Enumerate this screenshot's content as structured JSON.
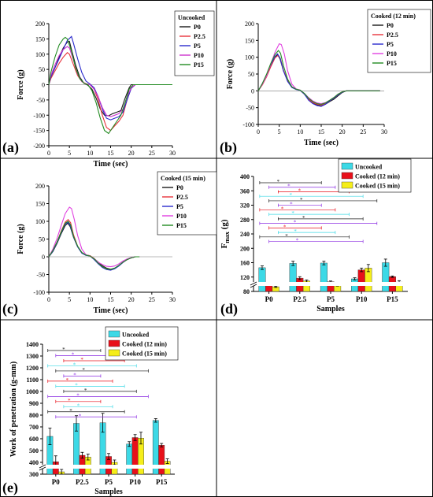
{
  "chart_data": [
    {
      "panel": "(a)",
      "type": "line",
      "xlabel": "Time (sec)",
      "ylabel": "Force (g)",
      "xlim": [
        0,
        30
      ],
      "ylim": [
        -200,
        200
      ],
      "xticks": [
        0,
        5,
        10,
        15,
        20,
        25,
        30
      ],
      "yticks": [
        -200,
        -150,
        -100,
        -50,
        0,
        50,
        100,
        150,
        200
      ],
      "legend": {
        "title": "Uncooked",
        "position": "top-right"
      },
      "series": [
        {
          "name": "P0",
          "color": "#1a1a1a",
          "x": [
            0,
            0.5,
            1.5,
            2.5,
            3.5,
            4.5,
            5.0,
            5.5,
            6.5,
            7.5,
            8.5,
            9.5,
            10.5,
            11.5,
            12.5,
            13.5,
            14.5,
            15.5,
            16.5,
            17.5,
            18.5,
            19.5,
            20.0,
            21,
            25,
            30
          ],
          "y": [
            0,
            25,
            55,
            90,
            120,
            140,
            142,
            115,
            65,
            25,
            5,
            -2,
            -15,
            -45,
            -80,
            -100,
            -102,
            -95,
            -90,
            -85,
            -45,
            -10,
            0,
            0,
            0,
            0
          ]
        },
        {
          "name": "P2.5",
          "color": "#e8323c",
          "x": [
            0,
            0.5,
            1.5,
            2.5,
            3.5,
            4.5,
            5.0,
            6.0,
            7.0,
            8.0,
            9.0,
            10.0,
            11.0,
            12.0,
            13.0,
            14.0,
            15.0,
            16.0,
            17.0,
            18.0,
            19.0,
            20.0,
            21,
            25,
            30
          ],
          "y": [
            0,
            20,
            45,
            70,
            90,
            105,
            100,
            65,
            30,
            10,
            3,
            0,
            -15,
            -50,
            -100,
            -140,
            -150,
            -135,
            -120,
            -100,
            -50,
            -10,
            0,
            0,
            0
          ]
        },
        {
          "name": "P5",
          "color": "#2a2acc",
          "x": [
            0,
            0.5,
            1.5,
            2.5,
            3.5,
            4.5,
            5.5,
            6.0,
            7.0,
            8.0,
            9.0,
            10.0,
            11.0,
            12.0,
            13.0,
            14.0,
            15.0,
            16.0,
            17.0,
            18.0,
            19.0,
            20.0,
            21,
            25,
            30
          ],
          "y": [
            0,
            25,
            55,
            85,
            115,
            145,
            158,
            135,
            85,
            40,
            12,
            2,
            -10,
            -40,
            -80,
            -110,
            -115,
            -110,
            -105,
            -90,
            -50,
            -12,
            0,
            0,
            0
          ]
        },
        {
          "name": "P10",
          "color": "#cc33cc",
          "x": [
            0,
            0.5,
            1.5,
            2.5,
            3.5,
            4.5,
            5.0,
            6.0,
            7.0,
            8.0,
            9.0,
            10.0,
            11.0,
            12.0,
            13.0,
            14.0,
            15.0,
            16.0,
            17.0,
            18.0,
            19.0,
            20.0,
            21,
            25,
            30
          ],
          "y": [
            0,
            30,
            65,
            95,
            115,
            125,
            120,
            80,
            35,
            10,
            2,
            0,
            -15,
            -40,
            -75,
            -100,
            -105,
            -100,
            -95,
            -80,
            -40,
            -10,
            0,
            0,
            0
          ]
        },
        {
          "name": "P15",
          "color": "#228b22",
          "x": [
            0,
            0.5,
            1.5,
            2.5,
            3.5,
            4.0,
            4.5,
            5.5,
            6.5,
            7.5,
            8.5,
            9.5,
            10.5,
            11.5,
            12.5,
            13.5,
            14.5,
            15.5,
            16.5,
            17.5,
            18.5,
            19.5,
            20.5,
            25,
            30
          ],
          "y": [
            0,
            40,
            90,
            130,
            150,
            155,
            150,
            110,
            55,
            20,
            5,
            0,
            -20,
            -60,
            -110,
            -150,
            -160,
            -140,
            -120,
            -100,
            -60,
            -15,
            0,
            0,
            0
          ]
        }
      ]
    },
    {
      "panel": "(b)",
      "type": "line",
      "xlabel": "Time (sec)",
      "ylabel": "Force (g)",
      "xlim": [
        0,
        30
      ],
      "ylim": [
        -100,
        200
      ],
      "xticks": [
        0,
        5,
        10,
        15,
        20,
        25,
        30
      ],
      "yticks": [
        -100,
        -50,
        0,
        50,
        100,
        150,
        200
      ],
      "legend": {
        "title": "Cooked (12 min)",
        "position": "top-right"
      },
      "series": [
        {
          "name": "P0",
          "color": "#1a1a1a",
          "x": [
            0,
            1,
            2,
            3,
            4,
            4.6,
            5.2,
            6,
            7,
            8,
            9,
            10,
            11,
            12,
            13,
            14,
            15,
            16,
            17,
            18,
            19,
            20,
            21,
            25,
            29
          ],
          "y": [
            0,
            20,
            45,
            75,
            100,
            108,
            95,
            60,
            30,
            12,
            5,
            2,
            -10,
            -25,
            -35,
            -42,
            -45,
            -40,
            -32,
            -25,
            -15,
            -5,
            0,
            0,
            0
          ]
        },
        {
          "name": "P2.5",
          "color": "#e8323c",
          "x": [
            0,
            1,
            2,
            3,
            4,
            4.7,
            5.3,
            6,
            7,
            8,
            9,
            10,
            11,
            12,
            13,
            14,
            15,
            16,
            17,
            18,
            19,
            20,
            21,
            25,
            29
          ],
          "y": [
            0,
            18,
            42,
            72,
            98,
            105,
            95,
            62,
            32,
            12,
            5,
            2,
            -10,
            -25,
            -35,
            -40,
            -42,
            -38,
            -30,
            -22,
            -12,
            -3,
            0,
            0,
            0
          ]
        },
        {
          "name": "P5",
          "color": "#2a2acc",
          "x": [
            0,
            1,
            2,
            3,
            4,
            4.6,
            5.2,
            6,
            7,
            8,
            9,
            10,
            11,
            12,
            13,
            14,
            15,
            16,
            17,
            18,
            19,
            20,
            21,
            25,
            29
          ],
          "y": [
            0,
            22,
            48,
            78,
            102,
            110,
            98,
            60,
            28,
            10,
            4,
            1,
            -10,
            -28,
            -38,
            -44,
            -46,
            -40,
            -30,
            -22,
            -12,
            -4,
            0,
            0,
            0
          ]
        },
        {
          "name": "P10",
          "color": "#e040e0",
          "x": [
            0,
            1,
            2,
            3,
            4,
            5.0,
            5.5,
            6.2,
            7,
            8,
            9,
            10,
            11,
            12,
            13,
            14,
            15,
            16,
            17,
            18,
            19,
            20,
            21,
            25,
            29
          ],
          "y": [
            0,
            20,
            45,
            80,
            115,
            140,
            138,
            110,
            60,
            20,
            6,
            2,
            -8,
            -20,
            -30,
            -36,
            -38,
            -35,
            -28,
            -20,
            -10,
            -3,
            0,
            0,
            0
          ]
        },
        {
          "name": "P15",
          "color": "#228b22",
          "x": [
            0,
            1,
            2,
            3,
            4,
            4.8,
            5.3,
            6,
            7,
            8,
            9,
            10,
            11,
            12,
            13,
            14,
            15,
            16,
            17,
            18,
            19,
            20,
            21,
            25,
            29
          ],
          "y": [
            0,
            22,
            50,
            82,
            108,
            120,
            112,
            75,
            35,
            12,
            5,
            2,
            -8,
            -22,
            -32,
            -38,
            -40,
            -36,
            -28,
            -20,
            -10,
            -3,
            0,
            0,
            0
          ]
        }
      ]
    },
    {
      "panel": "(c)",
      "type": "line",
      "xlabel": "Time (sec)",
      "ylabel": "Force (g)",
      "xlim": [
        0,
        30
      ],
      "ylim": [
        -100,
        200
      ],
      "xticks": [
        0,
        5,
        10,
        15,
        20,
        25,
        30
      ],
      "yticks": [
        -100,
        -50,
        0,
        50,
        100,
        150,
        200
      ],
      "legend": {
        "title": "Cooked (15 min)",
        "position": "top-right"
      },
      "series": [
        {
          "name": "P0",
          "color": "#1a1a1a",
          "x": [
            0,
            1,
            2,
            3,
            4,
            4.6,
            5.2,
            6,
            7,
            8,
            9,
            10,
            11,
            12,
            13,
            14,
            15,
            16,
            17,
            18,
            19,
            20,
            21,
            22
          ],
          "y": [
            0,
            15,
            38,
            65,
            88,
            95,
            85,
            55,
            28,
            12,
            5,
            3,
            -5,
            -15,
            -25,
            -32,
            -35,
            -32,
            -25,
            -15,
            -8,
            -3,
            0,
            0
          ]
        },
        {
          "name": "P2.5",
          "color": "#e8323c",
          "x": [
            0,
            1,
            2,
            3,
            4,
            4.7,
            5.3,
            6,
            7,
            8,
            9,
            10,
            11,
            12,
            13,
            14,
            15,
            16,
            17,
            18,
            19,
            20,
            21,
            22
          ],
          "y": [
            0,
            18,
            42,
            72,
            98,
            105,
            96,
            62,
            30,
            12,
            5,
            3,
            -5,
            -18,
            -28,
            -34,
            -36,
            -33,
            -25,
            -16,
            -8,
            -3,
            0,
            0
          ]
        },
        {
          "name": "P5",
          "color": "#2a2acc",
          "x": [
            0,
            1,
            2,
            3,
            4,
            4.6,
            5.2,
            6,
            7,
            8,
            9,
            10,
            11,
            12,
            13,
            14,
            15,
            16,
            17,
            18,
            19,
            20,
            21,
            22
          ],
          "y": [
            0,
            16,
            40,
            68,
            92,
            98,
            88,
            56,
            28,
            10,
            4,
            2,
            -8,
            -20,
            -30,
            -36,
            -38,
            -34,
            -26,
            -16,
            -8,
            -3,
            0,
            0
          ]
        },
        {
          "name": "P10",
          "color": "#e040e0",
          "x": [
            0,
            1,
            2,
            3,
            4,
            5.0,
            5.5,
            6.2,
            7,
            8,
            9,
            10,
            11,
            12,
            13,
            14,
            15,
            16,
            17,
            18,
            19,
            20,
            21,
            22
          ],
          "y": [
            0,
            22,
            52,
            88,
            122,
            140,
            136,
            105,
            60,
            22,
            6,
            2,
            -6,
            -15,
            -22,
            -27,
            -28,
            -26,
            -20,
            -12,
            -6,
            -2,
            0,
            0
          ]
        },
        {
          "name": "P15",
          "color": "#228b22",
          "x": [
            0,
            1,
            2,
            3,
            4,
            4.7,
            5.3,
            6,
            7,
            8,
            9,
            10,
            11,
            12,
            13,
            14,
            15,
            16,
            17,
            18,
            19,
            20,
            21,
            22
          ],
          "y": [
            0,
            18,
            42,
            70,
            95,
            100,
            90,
            58,
            30,
            12,
            5,
            2,
            -6,
            -18,
            -28,
            -34,
            -36,
            -32,
            -24,
            -15,
            -8,
            -3,
            0,
            0
          ]
        }
      ]
    },
    {
      "panel": "(d)",
      "type": "bar",
      "xlabel": "Samples",
      "ylabel": "F",
      "ylabel_sub": "max",
      "ylabel_unit": " (g)",
      "ylim": [
        80,
        400
      ],
      "yticks": [
        80,
        120,
        160,
        200,
        240,
        280,
        320,
        360,
        400
      ],
      "axis_break": true,
      "categories": [
        "P0",
        "P2.5",
        "P5",
        "P10",
        "P15"
      ],
      "legend": {
        "position": "top-right"
      },
      "series": [
        {
          "name": "Uncooked",
          "color": "#3cd9e6",
          "values": [
            146,
            158,
            159,
            115,
            160
          ],
          "errors": [
            5,
            6,
            5,
            3,
            10
          ]
        },
        {
          "name": "Cooked (12 min)",
          "color": "#e8101a",
          "values": [
            101,
            117,
            107,
            140,
            121
          ],
          "errors": [
            3,
            4,
            2,
            5,
            2
          ]
        },
        {
          "name": "Cooked (15 min)",
          "color": "#f5ee1a",
          "values": [
            93,
            109,
            98,
            145,
            106
          ],
          "errors": [
            2,
            3,
            3,
            10,
            4
          ]
        }
      ],
      "significance_marker": "*"
    },
    {
      "panel": "(e)",
      "type": "bar",
      "xlabel": "Samples",
      "ylabel": "Work of penetration (g-mm)",
      "ylim": [
        300,
        1400
      ],
      "yticks": [
        300,
        400,
        500,
        600,
        700,
        800,
        900,
        1000,
        1100,
        1200,
        1300,
        1400
      ],
      "axis_break": true,
      "categories": [
        "P0",
        "P2.5",
        "P5",
        "P10",
        "P15"
      ],
      "legend": {
        "position": "top-right"
      },
      "series": [
        {
          "name": "Uncooked",
          "color": "#3cd9e6",
          "values": [
            620,
            730,
            735,
            555,
            755
          ],
          "errors": [
            70,
            65,
            80,
            20,
            15
          ]
        },
        {
          "name": "Cooked (12 min)",
          "color": "#e8101a",
          "values": [
            405,
            460,
            450,
            610,
            545
          ],
          "errors": [
            50,
            25,
            25,
            25,
            15
          ]
        },
        {
          "name": "Cooked (15 min)",
          "color": "#f5ee1a",
          "values": [
            320,
            445,
            400,
            605,
            410
          ],
          "errors": [
            20,
            25,
            20,
            50,
            20
          ]
        }
      ],
      "significance_marker": "*"
    }
  ],
  "panel_labels": [
    "(a)",
    "(b)",
    "(c)",
    "(d)",
    "(e)"
  ]
}
